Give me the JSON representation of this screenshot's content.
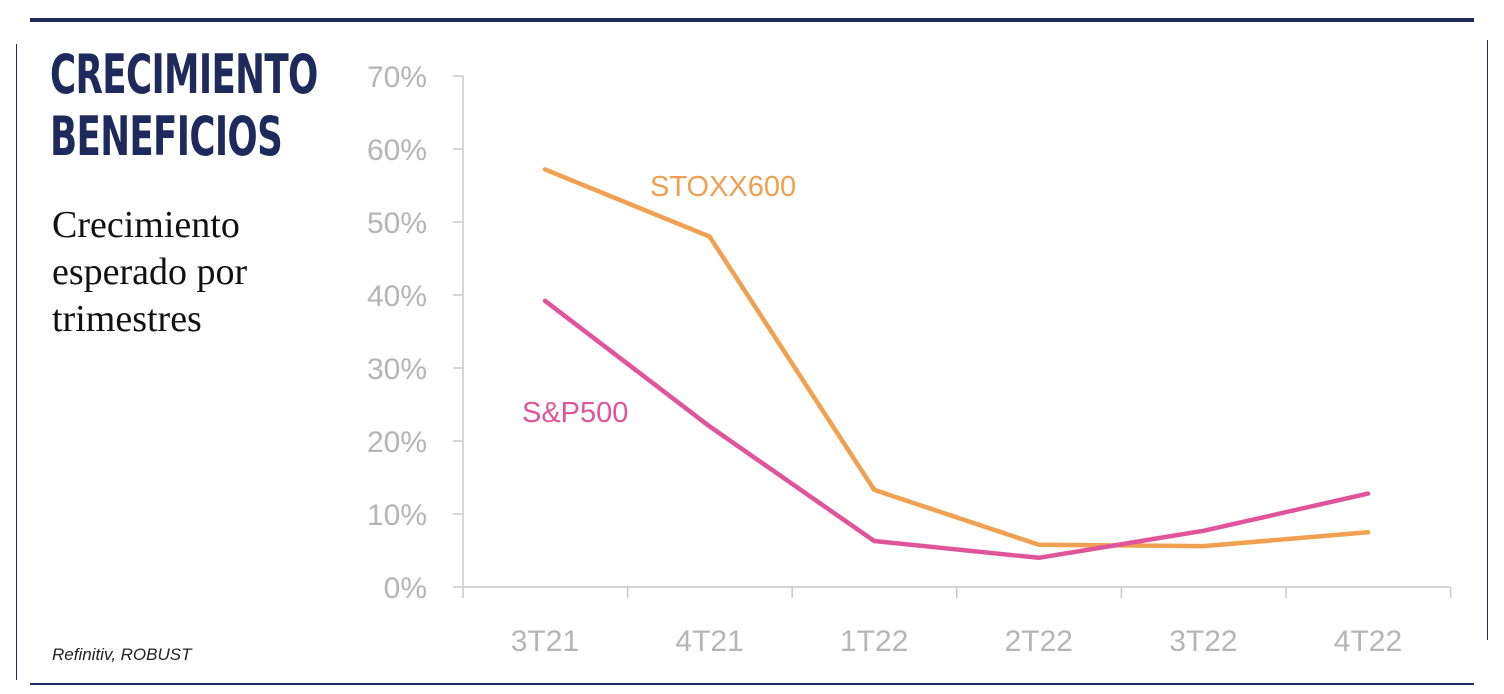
{
  "header": {
    "title_line1": "CRECIMIENTO",
    "title_line2": "BENEFICIOS",
    "subtitle": "Crecimiento esperado por trimestres"
  },
  "footer": {
    "source": "Refinitiv, ROBUST"
  },
  "colors": {
    "navy": "#1f2a5c",
    "stoxx": "#f0a050",
    "sp500": "#e0559a",
    "axis": "#c8c8c8",
    "tick_label": "#b5b5b5"
  },
  "chart_data": {
    "type": "line",
    "title": "",
    "xlabel": "",
    "ylabel": "",
    "categories": [
      "3T21",
      "4T21",
      "1T22",
      "2T22",
      "3T22",
      "4T22"
    ],
    "yticks": [
      "0%",
      "10%",
      "20%",
      "30%",
      "40%",
      "50%",
      "60%",
      "70%"
    ],
    "ylim": [
      0,
      70
    ],
    "grid": false,
    "series": [
      {
        "name": "STOXX600",
        "color": "#f0a050",
        "values": [
          57.2,
          48.0,
          13.3,
          5.8,
          5.6,
          7.5
        ]
      },
      {
        "name": "S&P500",
        "color": "#e0559a",
        "values": [
          39.2,
          22.0,
          6.3,
          4.0,
          7.7,
          12.8
        ]
      }
    ]
  }
}
